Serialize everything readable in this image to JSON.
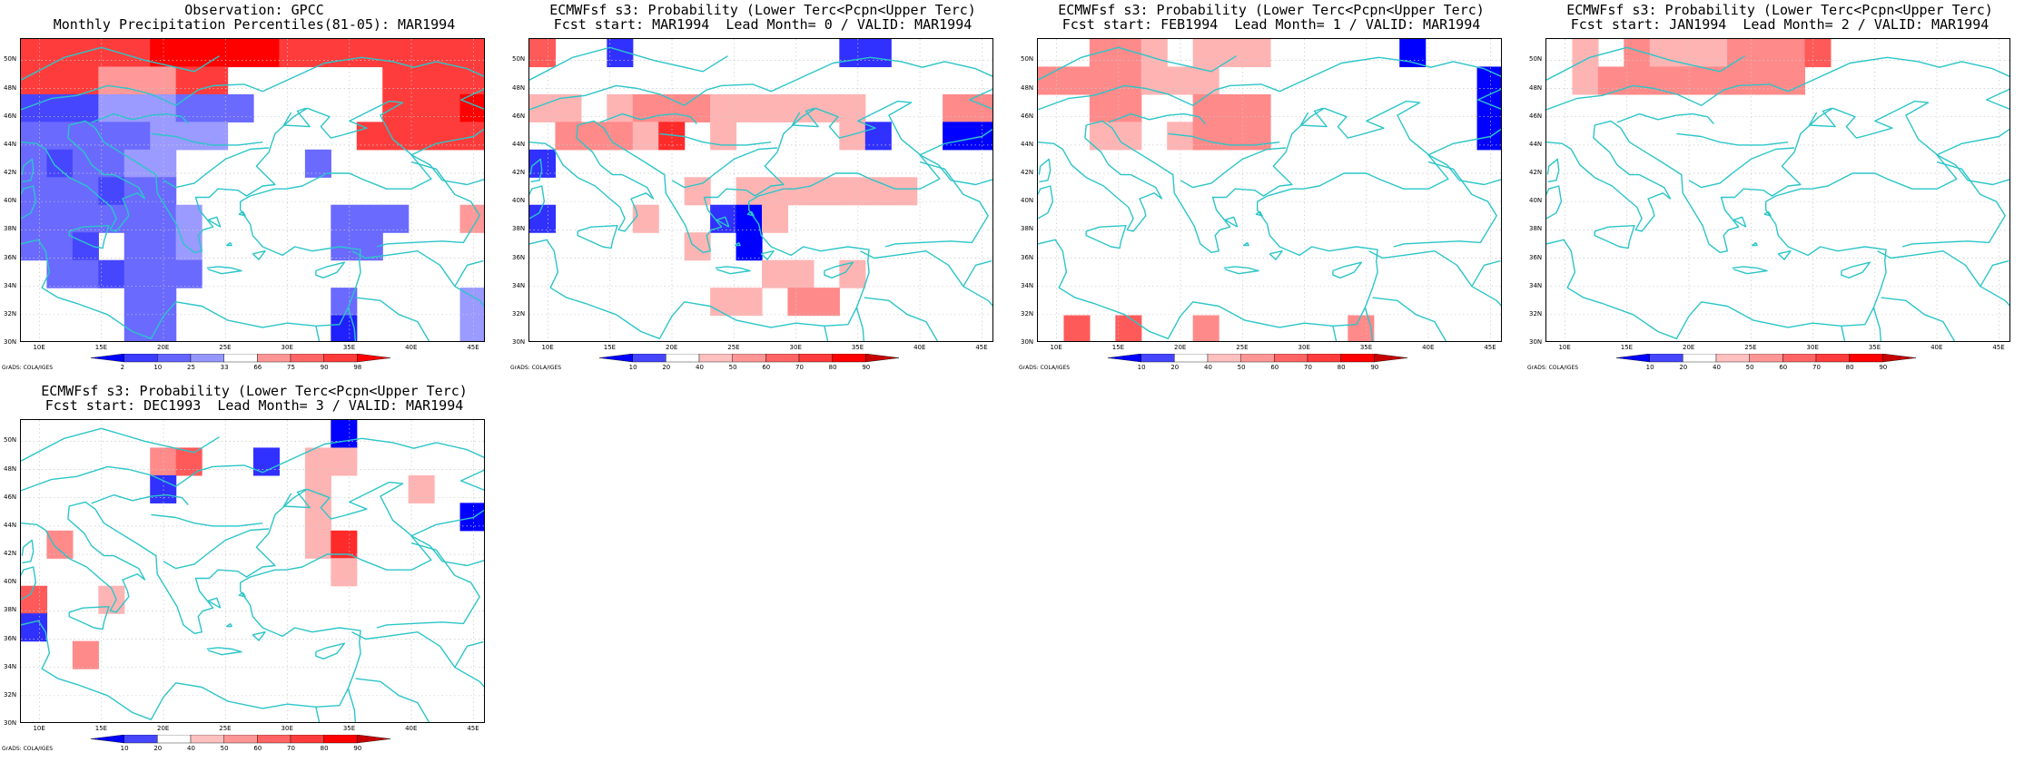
{
  "credit_text": "GrADS: COLA/IGES",
  "lon_ticks": [
    "10E",
    "15E",
    "20E",
    "25E",
    "30E",
    "35E",
    "40E",
    "45E"
  ],
  "lat_ticks": [
    "30N",
    "32N",
    "34N",
    "36N",
    "38N",
    "40N",
    "42N",
    "44N",
    "46N",
    "48N",
    "50N"
  ],
  "colors": {
    "coast": "#2cc5c8",
    "grid": "#c8c8c8"
  },
  "panels": [
    {
      "title1": "Observation: GPCC",
      "title2": "Monthly Precipitation Percentiles(81-05): MAR1994",
      "colorbar_labels": [
        "2",
        "10",
        "25",
        "33",
        "66",
        "75",
        "90",
        "98"
      ],
      "colorbar_colors": [
        "#0000ff",
        "#3c3cff",
        "#6464ff",
        "#9696ff",
        "#ffffff",
        "#ff9696",
        "#ff6464",
        "#ff3c3c",
        "#ff0000"
      ],
      "legend": {
        "0": "#ffffff",
        "1": "#6a6aff",
        "2": "#4646ff",
        "3": "#9a9aff",
        "4": "#2020ff",
        "5": "#ff3c3c",
        "6": "#ff0000",
        "7": "#ff9898"
      },
      "grid": [
        "555556666655555555",
        "555777550000005555",
        "222333111000005556",
        "111113330000055555",
        "121133000001000000",
        "111211000000000000",
        "111111300000111007",
        "112011300000110000",
        "011211100000000000",
        "000011000000100003",
        "000011000000400003"
      ]
    },
    {
      "title1": "ECMWFsf s3: Probability (Lower Terc<Pcpn<Upper Terc)",
      "title2": "Fcst start: MAR1994  Lead Month= 0 / VALID: MAR1994",
      "colorbar_labels": [
        "10",
        "20",
        "40",
        "50",
        "60",
        "70",
        "80",
        "90"
      ],
      "colorbar_colors": [
        "#0000ff",
        "#4646ff",
        "#ffffff",
        "#ffc0c0",
        "#ff9696",
        "#ff6464",
        "#ff3c3c",
        "#ff0000",
        "#c80000"
      ],
      "legend": {
        "1": "#ffb4b4",
        "2": "#ff8a8a",
        "3": "#ff5a5a",
        "4": "#ff2a2a",
        "5": "#3030ff",
        "6": "#0000ff",
        "7": "#d40000"
      },
      "grid": [
        "300500000000550000",
        "000000000000000000",
        "110122211111100022",
        "022214010000150066",
        "500000000000000000",
        "000000101111111000",
        "500010056100000000",
        "000000106000000000",
        "000000000110100000",
        "000000011022000000",
        "000000000000000000"
      ]
    },
    {
      "title1": "ECMWFsf s3: Probability (Lower Terc<Pcpn<Upper Terc)",
      "title2": "Fcst start: FEB1994  Lead Month= 1 / VALID: MAR1994",
      "colorbar_labels": [
        "10",
        "20",
        "40",
        "50",
        "60",
        "70",
        "80",
        "90"
      ],
      "colorbar_colors": [
        "#0000ff",
        "#4646ff",
        "#ffffff",
        "#ffc0c0",
        "#ff9696",
        "#ff6464",
        "#ff3c3c",
        "#ff0000",
        "#c80000"
      ],
      "legend": {
        "1": "#ffb4b4",
        "2": "#ff8a8a",
        "3": "#ff5a5a",
        "4": "#3030ff",
        "5": "#0000ff"
      },
      "grid": [
        "002210111000005000",
        "222211100000000005",
        "002200222000000005",
        "001101222000000005",
        "000000000000000000",
        "000000000000000000",
        "000000000000000000",
        "000000000000000000",
        "000000000000000000",
        "000000000000000000",
        "030300200000200000"
      ]
    },
    {
      "title1": "ECMWFsf s3: Probability (Lower Terc<Pcpn<Upper Terc)",
      "title2": "Fcst start: JAN1994  Lead Month= 2 / VALID: MAR1994",
      "colorbar_labels": [
        "10",
        "20",
        "40",
        "50",
        "60",
        "70",
        "80",
        "90"
      ],
      "colorbar_colors": [
        "#0000ff",
        "#4646ff",
        "#ffffff",
        "#ffc0c0",
        "#ff9696",
        "#ff6464",
        "#ff3c3c",
        "#ff0000",
        "#c80000"
      ],
      "legend": {
        "1": "#ffb4b4",
        "2": "#ff8a8a",
        "3": "#ff5a5a",
        "4": "#ff2a2a",
        "5": "#3030ff",
        "6": "#0000ff"
      },
      "grid": [
        "010211122230000000",
        "012222222200000000",
        "000000000000000000",
        "000000000000000000",
        "000000000000000000",
        "000000000000000000",
        "000000000000000000",
        "000000000000000000",
        "000000000000000000",
        "000000000000000000",
        "000000000000000000"
      ]
    },
    {
      "title1": "ECMWFsf s3: Probability (Lower Terc<Pcpn<Upper Terc)",
      "title2": "Fcst start: DEC1993  Lead Month= 3 / VALID: MAR1994",
      "colorbar_labels": [
        "10",
        "20",
        "40",
        "50",
        "60",
        "70",
        "80",
        "90"
      ],
      "colorbar_colors": [
        "#0000ff",
        "#4646ff",
        "#ffffff",
        "#ffc0c0",
        "#ff9696",
        "#ff6464",
        "#ff3c3c",
        "#ff0000",
        "#c80000"
      ],
      "legend": {
        "1": "#ffb4b4",
        "2": "#ff8a8a",
        "3": "#ff5a5a",
        "4": "#ff2a2a",
        "5": "#3030ff",
        "6": "#0000ff"
      },
      "grid": [
        "000000000000600000",
        "000002300501100000",
        "000005000001000100",
        "000000000001000006",
        "020000000001400000",
        "000000000000100000",
        "300100000000000000",
        "500000000000000000",
        "002000000000000000",
        "000000000000000000",
        "000000000000000000"
      ]
    }
  ]
}
